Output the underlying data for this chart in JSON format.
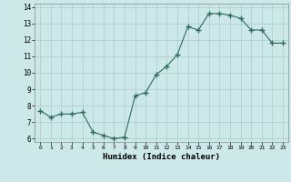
{
  "x": [
    0,
    1,
    2,
    3,
    4,
    5,
    6,
    7,
    8,
    9,
    10,
    11,
    12,
    13,
    14,
    15,
    16,
    17,
    18,
    19,
    20,
    21,
    22,
    23
  ],
  "y": [
    7.7,
    7.3,
    7.5,
    7.5,
    7.6,
    6.4,
    6.2,
    6.0,
    6.1,
    8.6,
    8.8,
    9.9,
    10.4,
    11.1,
    12.8,
    12.6,
    13.6,
    13.6,
    13.5,
    13.3,
    12.6,
    12.6,
    11.8,
    11.8
  ],
  "xlabel": "Humidex (Indice chaleur)",
  "yticks": [
    6,
    7,
    8,
    9,
    10,
    11,
    12,
    13,
    14
  ],
  "xticks": [
    0,
    1,
    2,
    3,
    4,
    5,
    6,
    7,
    8,
    9,
    10,
    11,
    12,
    13,
    14,
    15,
    16,
    17,
    18,
    19,
    20,
    21,
    22,
    23
  ],
  "line_color": "#2d6b5e",
  "marker": "+",
  "marker_size": 4,
  "bg_color": "#cce8e8",
  "grid_color": "#aacccc"
}
